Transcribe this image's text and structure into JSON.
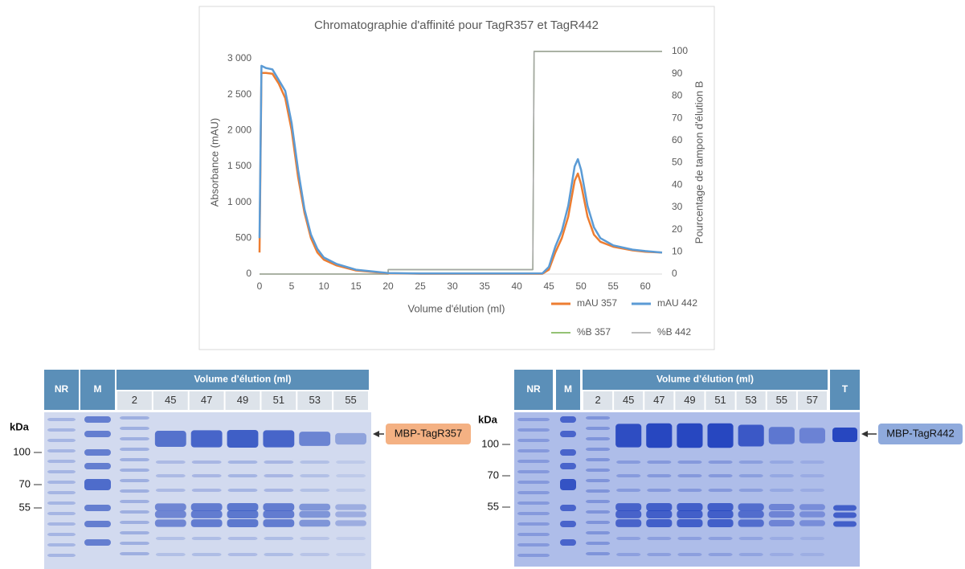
{
  "chart_data": {
    "type": "line",
    "title": "Chromatographie d'affinité pour TagR357 et TagR442",
    "x_label": "Volume d'élution (ml)",
    "y_label": "Absorbance (mAU)",
    "y2_label": "Pourcentage de tampon d'élution B",
    "xlim": [
      0,
      62.6
    ],
    "xticks": [
      0,
      5,
      10,
      15,
      20,
      25,
      30,
      35,
      40,
      45,
      50,
      55,
      60
    ],
    "ylim": [
      0,
      3100
    ],
    "yticks": [
      0,
      500,
      {
        "value": 1000,
        "label": "1 000"
      },
      {
        "value": 1500,
        "label": "1 500"
      },
      {
        "value": 2000,
        "label": "2 000"
      },
      {
        "value": 2500,
        "label": "2 500"
      },
      {
        "value": 3000,
        "label": "3 000"
      }
    ],
    "y2lim": [
      0,
      100
    ],
    "y2ticks": [
      0,
      10,
      20,
      30,
      40,
      50,
      60,
      70,
      80,
      90,
      100
    ],
    "grid": false,
    "legend": "bottom-right",
    "series": [
      {
        "name": "mAU 357",
        "color": "#ed7d31",
        "x": [
          0,
          0.3,
          1,
          2,
          3,
          4,
          5,
          6,
          7,
          8,
          9,
          10,
          12,
          15,
          20,
          25,
          30,
          35,
          40,
          44,
          45,
          46,
          47,
          48,
          49,
          49.5,
          50,
          51,
          52,
          53,
          55,
          58,
          60,
          62.6
        ],
        "values": [
          300,
          2800,
          2800,
          2790,
          2650,
          2450,
          2000,
          1350,
          850,
          500,
          300,
          200,
          120,
          50,
          10,
          5,
          5,
          5,
          5,
          5,
          60,
          300,
          500,
          800,
          1300,
          1400,
          1250,
          800,
          550,
          450,
          380,
          330,
          310,
          300
        ]
      },
      {
        "name": "mAU 442",
        "color": "#5b9bd5",
        "x": [
          0,
          0.3,
          1,
          2,
          3,
          4,
          5,
          6,
          7,
          8,
          9,
          10,
          12,
          15,
          20,
          25,
          30,
          35,
          40,
          44,
          45,
          46,
          47,
          48,
          49,
          49.5,
          50,
          51,
          52,
          53,
          55,
          58,
          60,
          62.6
        ],
        "values": [
          500,
          2900,
          2870,
          2850,
          2700,
          2550,
          2100,
          1450,
          900,
          550,
          350,
          230,
          140,
          60,
          15,
          8,
          8,
          8,
          8,
          10,
          100,
          380,
          600,
          950,
          1500,
          1600,
          1450,
          950,
          650,
          500,
          400,
          340,
          320,
          300
        ]
      },
      {
        "name": "%B 357",
        "color": "#70ad47",
        "axis": "y2",
        "x": [
          0,
          20,
          20,
          42.5,
          42.7,
          62.6
        ],
        "values": [
          0,
          0,
          2,
          2,
          100,
          100
        ]
      },
      {
        "name": "%B 442",
        "color": "#a5a5a5",
        "axis": "y2",
        "x": [
          0,
          20,
          20,
          42.5,
          42.7,
          62.6
        ],
        "values": [
          0,
          0,
          2,
          2,
          100,
          100
        ]
      }
    ]
  },
  "gels": [
    {
      "nr": "NR",
      "m": "M",
      "title": "Volume d’élution (ml)",
      "lanes": [
        "2",
        "45",
        "47",
        "49",
        "51",
        "53",
        "55"
      ],
      "unit": "kDa",
      "markers": [
        100,
        70,
        55
      ],
      "protein": "MBP-TagR357"
    },
    {
      "nr": "NR",
      "m": "M",
      "title": "Volume d’élution (ml)",
      "lanes": [
        "2",
        "45",
        "47",
        "49",
        "51",
        "53",
        "55",
        "57"
      ],
      "t": "T",
      "unit": "kDa",
      "markers": [
        100,
        70,
        55
      ],
      "protein": "MBP-TagR442"
    }
  ]
}
